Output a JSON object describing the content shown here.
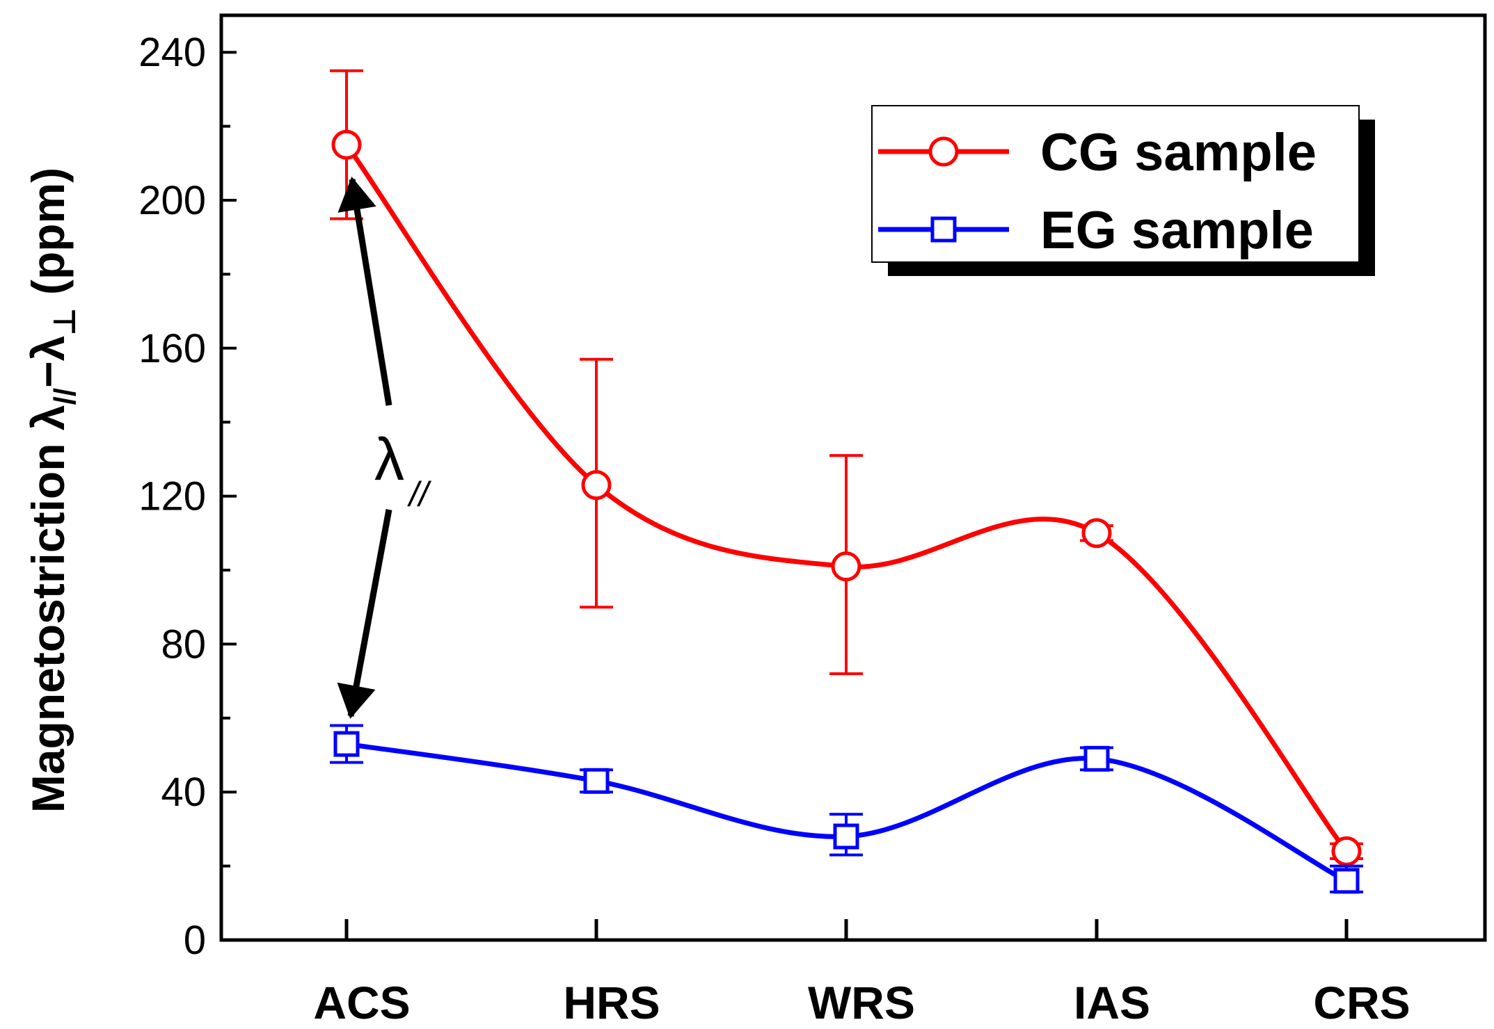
{
  "chart_data": {
    "type": "line",
    "categories": [
      "ACS",
      "HRS",
      "WRS",
      "IAS",
      "CRS"
    ],
    "ylabel": {
      "main": "Magnetostriction ",
      "lambda1": "λ",
      "sub1": "//",
      "dash": "−",
      "lambda2": "λ",
      "sub2": "⊥",
      "unit": " (ppm)"
    },
    "ylim": [
      0,
      250
    ],
    "yticks": [
      0,
      40,
      80,
      120,
      160,
      200,
      240
    ],
    "ytick_labels": [
      "0",
      "40",
      "80",
      "120",
      "160",
      "200",
      "240"
    ],
    "series": [
      {
        "name": "CG sample",
        "color": "#ff0000",
        "marker": "circle",
        "values": [
          215,
          123,
          101,
          110,
          24
        ],
        "err_low": [
          195,
          90,
          72,
          108,
          22
        ],
        "err_high": [
          235,
          157,
          131,
          112,
          26
        ]
      },
      {
        "name": "EG sample",
        "color": "#0000ff",
        "marker": "square",
        "values": [
          53,
          43,
          28,
          49,
          16
        ],
        "err_low": [
          48,
          40,
          23,
          46,
          13
        ],
        "err_high": [
          58,
          46,
          34,
          52,
          20
        ]
      }
    ],
    "legend": {
      "position": "top-right"
    },
    "annotation": {
      "symbol": "λ",
      "subscript": "//"
    }
  }
}
